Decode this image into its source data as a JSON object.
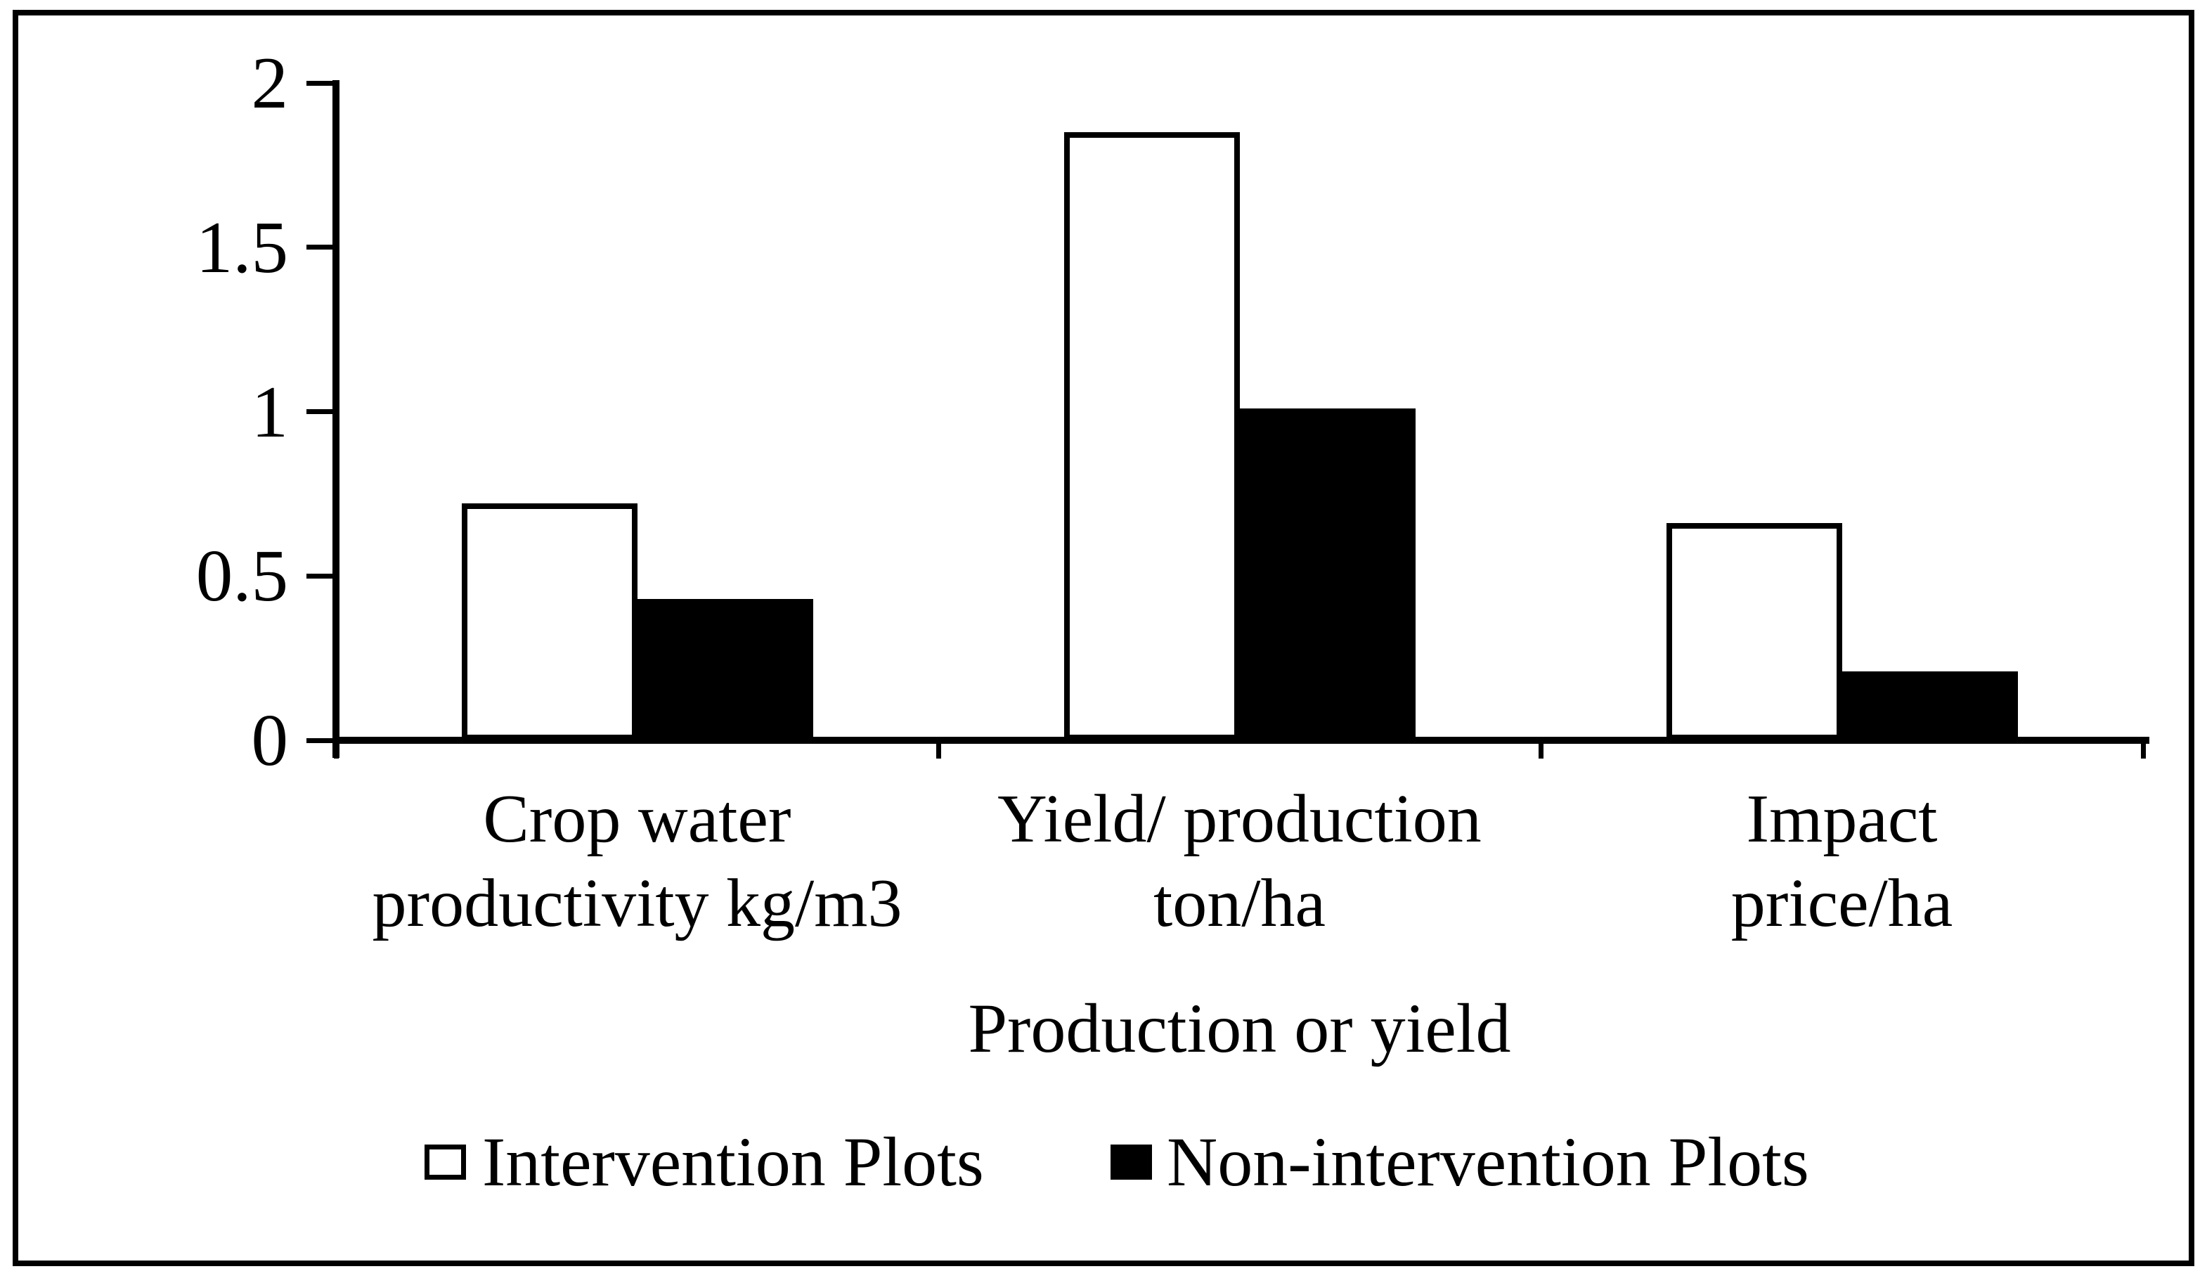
{
  "figure": {
    "background_color": "#ffffff",
    "border_color": "#000000",
    "bar_fill_series1": "#ffffff",
    "bar_fill_series2": "#000000"
  },
  "chart_data": {
    "type": "bar",
    "title": "",
    "xlabel": "Production or yield",
    "ylabel": "",
    "ylim": [
      0,
      2
    ],
    "yticks": [
      0,
      0.5,
      1,
      1.5,
      2
    ],
    "ytick_labels": [
      "0",
      "0.5",
      "1",
      "1.5",
      "2"
    ],
    "grid": false,
    "legend_position": "bottom",
    "categories": [
      "Crop water productivity kg/m3",
      "Yield/ production ton/ha",
      "Impact price/ha"
    ],
    "category_lines": [
      [
        "Crop water",
        "productivity kg/m3"
      ],
      [
        "Yield/ production",
        "ton/ha"
      ],
      [
        "Impact",
        "price/ha"
      ]
    ],
    "series": [
      {
        "name": "Intervention Plots",
        "fill": "#ffffff",
        "values": [
          0.72,
          1.85,
          0.66
        ]
      },
      {
        "name": "Non-intervention Plots",
        "fill": "#000000",
        "values": [
          0.43,
          1.01,
          0.21
        ]
      }
    ]
  }
}
